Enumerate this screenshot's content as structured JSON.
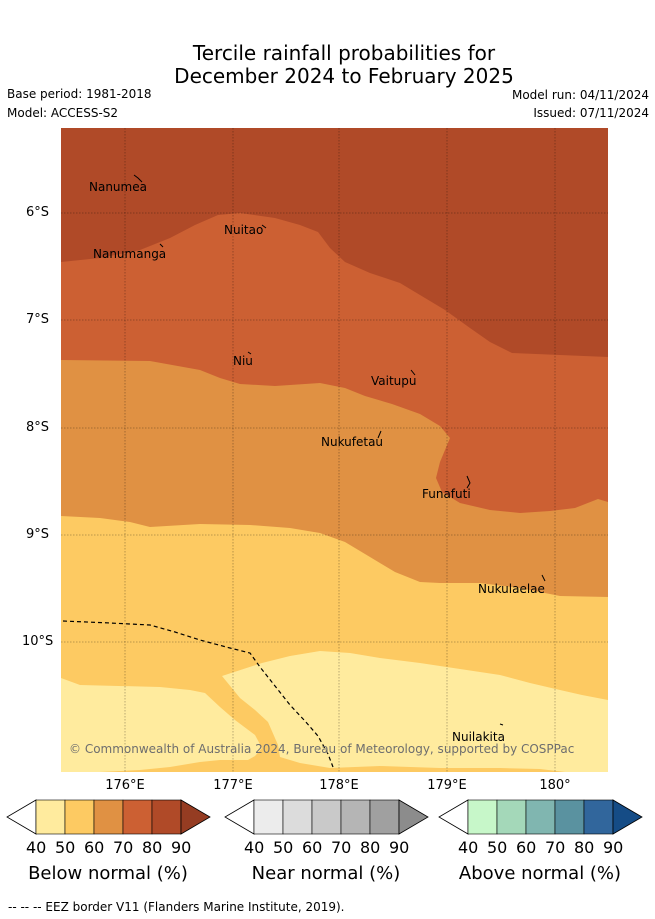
{
  "title_line1": "Tercile rainfall probabilities for",
  "title_line2": "December 2024 to February 2025",
  "base_period": "Base period: 1981-2018",
  "model": "Model: ACCESS-S2",
  "model_run": "Model run: 04/11/2024",
  "issued": "Issued: 07/11/2024",
  "copyright": "© Commonwealth of Australia 2024, Bureau of Meteorology, supported by COSPPac",
  "latitude_labels": [
    "6°S",
    "7°S",
    "8°S",
    "9°S",
    "10°S"
  ],
  "longitude_labels": [
    "176°E",
    "177°E",
    "178°E",
    "179°E",
    "180°"
  ],
  "places": [
    {
      "name": "Nanumea"
    },
    {
      "name": "Nanumanga"
    },
    {
      "name": "Nuitao"
    },
    {
      "name": "Niu"
    },
    {
      "name": "Vaitupu"
    },
    {
      "name": "Nukufetau"
    },
    {
      "name": "Funafuti"
    },
    {
      "name": "Nukulaelae"
    },
    {
      "name": "Nuilakita"
    }
  ],
  "colorbars": [
    {
      "caption": "Below normal (%)",
      "ticks": [
        "40",
        "50",
        "60",
        "70",
        "80",
        "90"
      ],
      "colors": [
        "#ffeb9e",
        "#fdca62",
        "#e09143",
        "#cc6033",
        "#b04a28"
      ],
      "arrow_color": "#953c22"
    },
    {
      "caption": "Near normal (%)",
      "ticks": [
        "40",
        "50",
        "60",
        "70",
        "80",
        "90"
      ],
      "colors": [
        "#ececec",
        "#dcdcdc",
        "#c9c9c9",
        "#b5b5b5",
        "#a0a0a0"
      ],
      "arrow_color": "#8c8c8c"
    },
    {
      "caption": "Above normal (%)",
      "ticks": [
        "40",
        "50",
        "60",
        "70",
        "80",
        "90"
      ],
      "colors": [
        "#c7f7c9",
        "#a4d8b9",
        "#80b6b0",
        "#5a92a0",
        "#31669c"
      ],
      "arrow_color": "#154c86"
    }
  ],
  "footer": "--  --  -- EEZ border V11 (Flanders Marine Institute, 2019)."
}
